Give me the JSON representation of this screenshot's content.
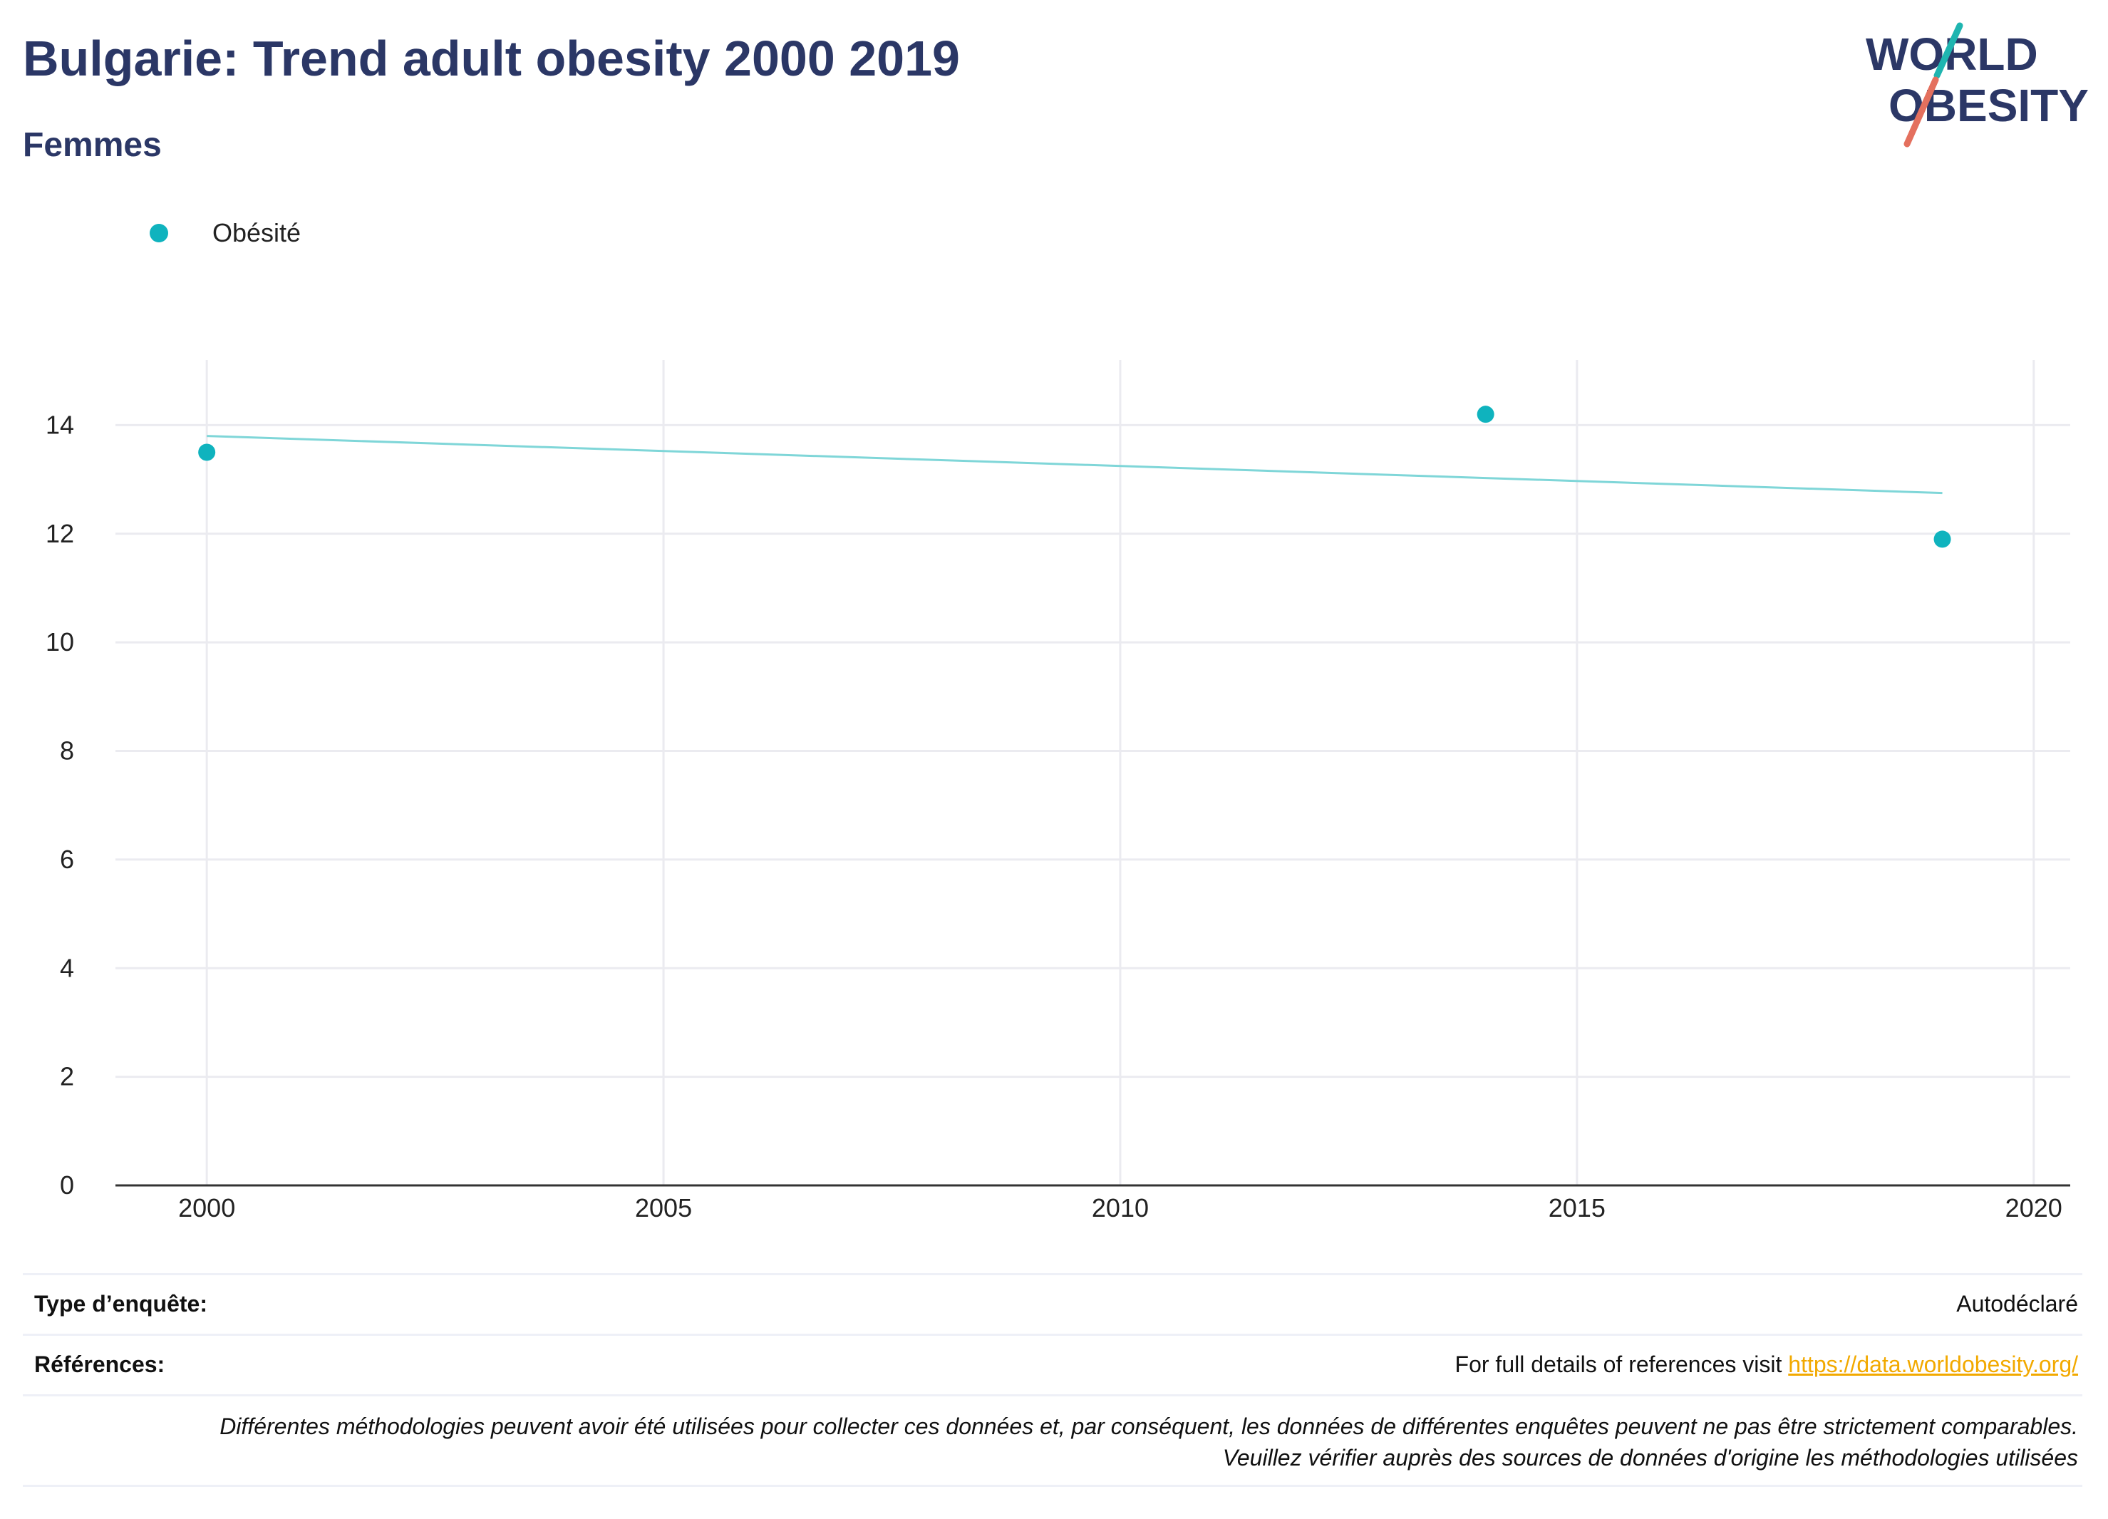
{
  "header": {
    "title": "Bulgarie: Trend adult obesity 2000 2019",
    "subtitle": "Femmes"
  },
  "logo": {
    "line1": "WORLD",
    "line2": "OBESITY"
  },
  "colors": {
    "series": "#0fb3be",
    "trend": "#7fd6d8",
    "title": "#2b3766",
    "link": "#f2a900",
    "grid": "#ebebf0"
  },
  "chart_data": {
    "type": "scatter",
    "title": "Bulgarie: Trend adult obesity 2000 2019",
    "subtitle": "Femmes",
    "xlabel": "",
    "ylabel": "",
    "xlim": [
      1999,
      2020.4
    ],
    "ylim": [
      0,
      15.2
    ],
    "xticks": [
      2000,
      2005,
      2010,
      2015,
      2020
    ],
    "yticks": [
      0,
      2,
      4,
      6,
      8,
      10,
      12,
      14
    ],
    "grid": true,
    "legend_position": "top-left",
    "series": [
      {
        "name": "Obésité",
        "x": [
          2000,
          2014,
          2019
        ],
        "y": [
          13.5,
          14.2,
          11.9
        ]
      }
    ],
    "trendline": {
      "x": [
        2000,
        2019
      ],
      "y": [
        13.8,
        12.75
      ]
    }
  },
  "footer": {
    "survey_label": "Type d’enquête:",
    "survey_value": "Autodéclaré",
    "references_label": "Références:",
    "references_text": "For full details of references visit ",
    "references_link": "https://data.worldobesity.org/",
    "note": "Différentes méthodologies peuvent avoir été utilisées pour collecter ces données et, par conséquent, les données de différentes enquêtes peuvent ne pas être strictement comparables. Veuillez vérifier auprès des sources de données d'origine les méthodologies utilisées"
  }
}
